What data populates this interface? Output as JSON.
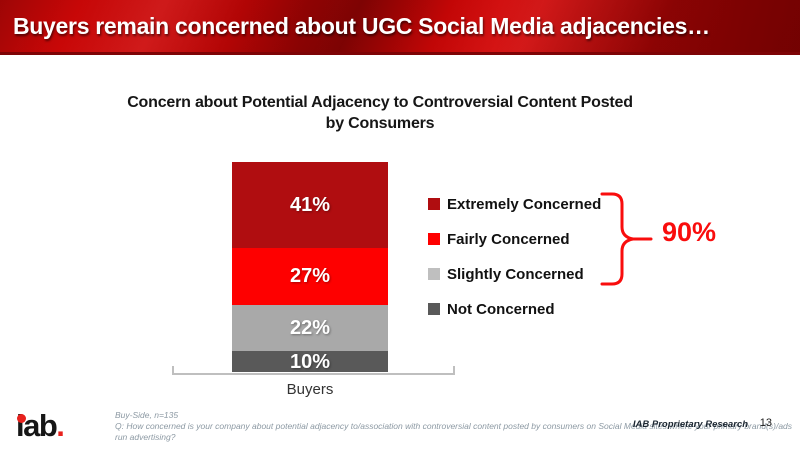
{
  "header": {
    "title": "Buyers remain concerned about UGC Social Media adjacencies…",
    "background_color": "#b30505",
    "border_color": "#7e0406"
  },
  "chart_data": {
    "type": "bar",
    "stacked": true,
    "title": "Concern about Potential Adjacency to Controversial Content Posted by Consumers",
    "categories": [
      "Buyers"
    ],
    "series": [
      {
        "name": "Extremely Concerned",
        "values": [
          41
        ],
        "color": "#b00d10",
        "legend_color": "#b00d10"
      },
      {
        "name": "Fairly Concerned",
        "values": [
          27
        ],
        "color": "#fe0000",
        "legend_color": "#fe0000"
      },
      {
        "name": "Slightly Concerned",
        "values": [
          22
        ],
        "color": "#a9a9a9",
        "legend_color": "#bfbfbf"
      },
      {
        "name": "Not Concerned",
        "values": [
          10
        ],
        "color": "#595959",
        "legend_color": "#595959"
      }
    ],
    "value_suffix": "%",
    "ylim": [
      0,
      100
    ],
    "grid": false,
    "legend_position": "right",
    "annotation": {
      "label": "90%",
      "covers": [
        "Extremely Concerned",
        "Fairly Concerned",
        "Slightly Concerned"
      ],
      "color": "#f90d0d"
    }
  },
  "axis": {
    "category_label": "Buyers"
  },
  "annotation": {
    "value": "90%"
  },
  "footer": {
    "logo_text": "iab",
    "logo_period": ".",
    "note_line1": "Buy-Side, n=135",
    "note_line2": "Q: How concerned is your company about potential adjacency to/association with controversial content posted by consumers on Social Media sites where your primary brand(s)/ads",
    "note_line3": "run advertising?",
    "proprietary": "IAB Proprietary Research",
    "page_number": "13"
  }
}
